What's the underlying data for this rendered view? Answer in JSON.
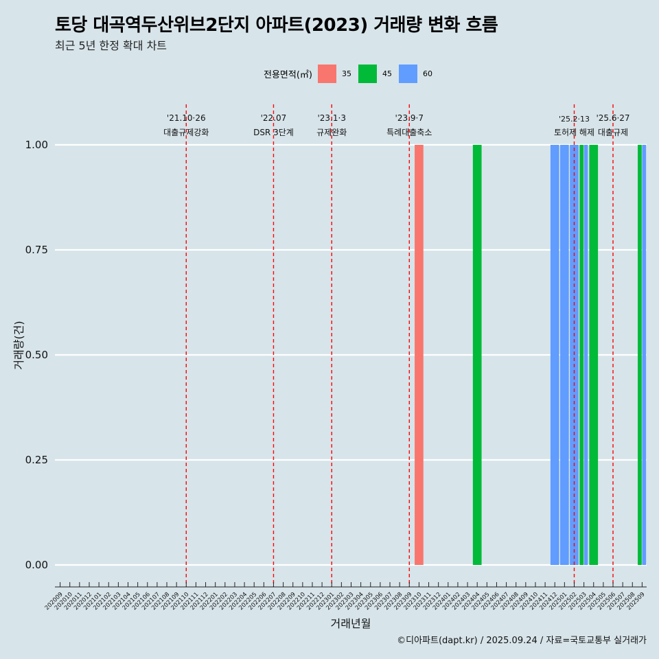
{
  "title": "토당 대곡역두산위브2단지 아파트(2023) 거래량 변화 흐름",
  "subtitle": "최근 5년 한정 확대 차트",
  "credit": "©디아파트(dapt.kr) / 2025.09.24 / 자료=국토교통부 실거래가",
  "legend": {
    "title": "전용면적(㎡)",
    "items": [
      {
        "label": "35",
        "color": "#f8766d"
      },
      {
        "label": "45",
        "color": "#00ba38"
      },
      {
        "label": "60",
        "color": "#619cff"
      }
    ]
  },
  "chart_data": {
    "type": "bar",
    "title": "토당 대곡역두산위브2단지 아파트(2023) 거래량 변화 흐름",
    "xlabel": "거래년월",
    "ylabel": "거래량(건)",
    "ylim": [
      0,
      1
    ],
    "yticks": [
      "0.00",
      "0.25",
      "0.50",
      "0.75",
      "1.00"
    ],
    "categories": [
      "202009",
      "202010",
      "202011",
      "202012",
      "202101",
      "202102",
      "202103",
      "202104",
      "202105",
      "202106",
      "202107",
      "202108",
      "202109",
      "202110",
      "202111",
      "202112",
      "202201",
      "202202",
      "202203",
      "202204",
      "202205",
      "202206",
      "202207",
      "202208",
      "202209",
      "202210",
      "202211",
      "202212",
      "202301",
      "202302",
      "202303",
      "202304",
      "202305",
      "202306",
      "202307",
      "202308",
      "202309",
      "202310",
      "202311",
      "202312",
      "202401",
      "202402",
      "202403",
      "202404",
      "202405",
      "202406",
      "202407",
      "202408",
      "202409",
      "202410",
      "202411",
      "202412",
      "202501",
      "202502",
      "202503",
      "202504",
      "202505",
      "202506",
      "202507",
      "202508",
      "202509"
    ],
    "bars": [
      {
        "month": "202310",
        "area": "35",
        "value": 1
      },
      {
        "month": "202404",
        "area": "45",
        "value": 1
      },
      {
        "month": "202412",
        "area": "60",
        "value": 1
      },
      {
        "month": "202501",
        "area": "60",
        "value": 1
      },
      {
        "month": "202502",
        "area": "60",
        "value": 1
      },
      {
        "month": "202503",
        "area": "45",
        "value": 1
      },
      {
        "month": "202503",
        "area": "60",
        "value": 1
      },
      {
        "month": "202504",
        "area": "45",
        "value": 1
      },
      {
        "month": "202509",
        "area": "45",
        "value": 1
      },
      {
        "month": "202509",
        "area": "60",
        "value": 1
      }
    ],
    "events": [
      {
        "month": "202110",
        "date": "'21.10·26",
        "label": "대출규제강화"
      },
      {
        "month": "202207",
        "date": "'22.07",
        "label": "DSR 3단계"
      },
      {
        "month": "202301",
        "date": "'23.1·3",
        "label": "규제완화"
      },
      {
        "month": "202309",
        "date": "'23.9·7",
        "label": "특례대출축소"
      },
      {
        "month": "202502",
        "date": "'25.2·13",
        "label": "토허제 해제"
      },
      {
        "month": "202506",
        "date": "'25.6·27",
        "label": "대출규제"
      }
    ]
  }
}
